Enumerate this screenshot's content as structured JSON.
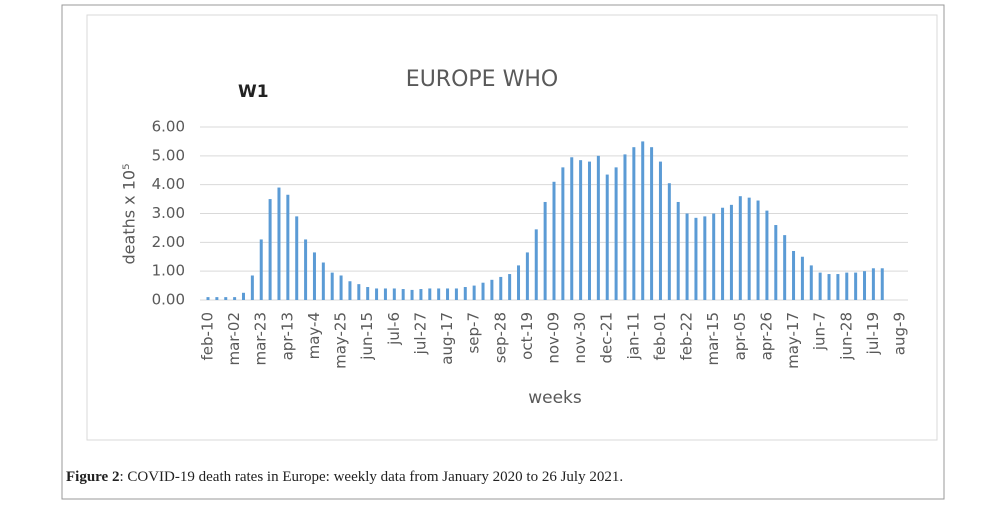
{
  "chart_data": {
    "type": "bar",
    "title": "EUROPE WHO",
    "annotation": "W1",
    "x_label": "weeks",
    "y_label": "deaths x 10⁵",
    "color": "#5b9bd5",
    "grid": true,
    "ylim": [
      0,
      6
    ],
    "yticks": [
      {
        "value": 0,
        "label": "0.00"
      },
      {
        "value": 1,
        "label": "1.00"
      },
      {
        "value": 2,
        "label": "2.00"
      },
      {
        "value": 3,
        "label": "3.00"
      },
      {
        "value": 4,
        "label": "4.00"
      },
      {
        "value": 5,
        "label": "5.00"
      },
      {
        "value": 6,
        "label": "6.00"
      }
    ],
    "categories": [
      "feb-10",
      null,
      null,
      "mar-02",
      null,
      null,
      "mar-23",
      null,
      null,
      "apr-13",
      null,
      null,
      "may-4",
      null,
      null,
      "may-25",
      null,
      null,
      "jun-15",
      null,
      null,
      "jul-6",
      null,
      null,
      "jul-27",
      null,
      null,
      "aug-17",
      null,
      null,
      "sep-7",
      null,
      null,
      "sep-28",
      null,
      null,
      "oct-19",
      null,
      null,
      "nov-09",
      null,
      null,
      "nov-30",
      null,
      null,
      "dec-21",
      null,
      null,
      "jan-11",
      null,
      null,
      "feb-01",
      null,
      null,
      "feb-22",
      null,
      null,
      "mar-15",
      null,
      null,
      "apr-05",
      null,
      null,
      "apr-26",
      null,
      null,
      "may-17",
      null,
      null,
      "jun-7",
      null,
      null,
      "jun-28",
      null,
      null,
      "jul-19",
      null,
      null,
      "aug-9"
    ],
    "values": [
      0.1,
      0.1,
      0.1,
      0.1,
      0.25,
      0.85,
      2.1,
      3.5,
      3.9,
      3.65,
      2.9,
      2.1,
      1.65,
      1.3,
      0.95,
      0.85,
      0.65,
      0.55,
      0.45,
      0.4,
      0.4,
      0.4,
      0.38,
      0.35,
      0.38,
      0.4,
      0.4,
      0.4,
      0.4,
      0.45,
      0.5,
      0.6,
      0.7,
      0.8,
      0.9,
      1.2,
      1.65,
      2.45,
      3.4,
      4.1,
      4.6,
      4.95,
      4.85,
      4.8,
      5.0,
      4.35,
      4.6,
      5.05,
      5.3,
      5.5,
      5.3,
      4.8,
      4.05,
      3.4,
      3.0,
      2.85,
      2.9,
      3.0,
      3.2,
      3.3,
      3.6,
      3.55,
      3.45,
      3.1,
      2.6,
      2.25,
      1.7,
      1.5,
      1.2,
      0.95,
      0.9,
      0.9,
      0.95,
      0.95,
      1.0,
      1.1,
      1.1,
      null,
      null
    ]
  },
  "figure_caption": {
    "label": "Figure 2",
    "text": ": COVID-19 death rates in Europe: weekly data from January 2020 to 26 July 2021."
  }
}
